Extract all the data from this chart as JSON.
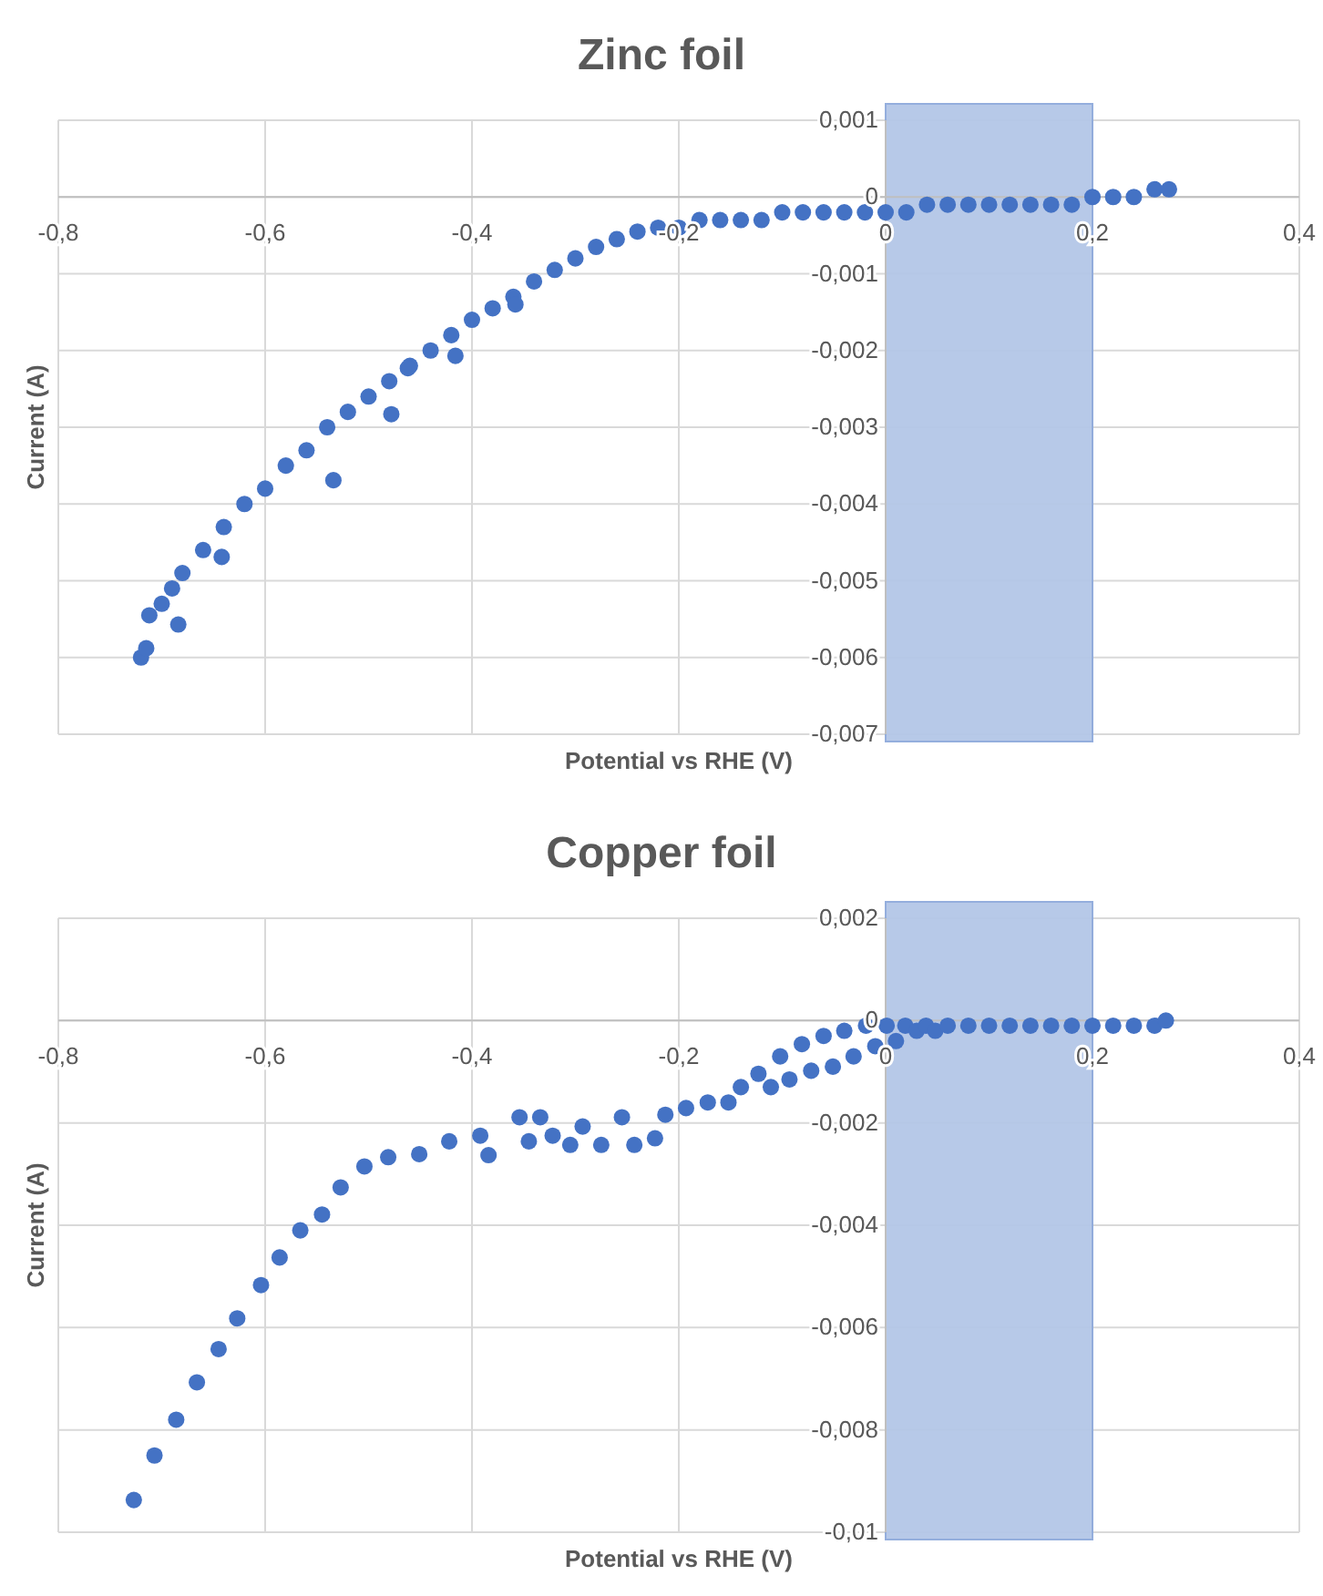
{
  "chart_data": [
    {
      "type": "scatter",
      "title": "Zinc foil",
      "xlabel": "Potential vs RHE (V)",
      "ylabel": "Current (A)",
      "xlim": [
        -0.8,
        0.4
      ],
      "xticks": [
        {
          "value": -0.8,
          "label": "-0,8"
        },
        {
          "value": -0.6,
          "label": "-0,6"
        },
        {
          "value": -0.4,
          "label": "-0,4"
        },
        {
          "value": -0.2,
          "label": "-0,2"
        },
        0,
        {
          "value": 0.2,
          "label": "0,2"
        },
        {
          "value": 0.4,
          "label": "0,4"
        }
      ],
      "ylim": [
        -0.007,
        0.001
      ],
      "yticks": [
        {
          "value": -0.007,
          "label": "-0,007"
        },
        {
          "value": -0.006,
          "label": "-0,006"
        },
        {
          "value": -0.005,
          "label": "-0,005"
        },
        {
          "value": -0.004,
          "label": "-0,004"
        },
        {
          "value": -0.003,
          "label": "-0,003"
        },
        {
          "value": -0.002,
          "label": "-0,002"
        },
        {
          "value": -0.001,
          "label": "-0,001"
        },
        0,
        {
          "value": 0.001,
          "label": "0,001"
        }
      ],
      "grid": true,
      "marker": "circle",
      "bands": [
        {
          "axis": "x",
          "from": 0,
          "to": 0.2,
          "color": "#b4c7e7"
        }
      ],
      "series": [
        {
          "color": "#4472c4",
          "x": [
            -0.72,
            -0.712,
            -0.7,
            -0.69,
            -0.68,
            -0.66,
            -0.64,
            -0.62,
            -0.6,
            -0.58,
            -0.56,
            -0.54,
            -0.52,
            -0.5,
            -0.48,
            -0.46,
            -0.44,
            -0.42,
            -0.4,
            -0.38,
            -0.36,
            -0.34,
            -0.32,
            -0.3,
            -0.28,
            -0.26,
            -0.24,
            -0.22,
            -0.2,
            -0.18,
            -0.16,
            -0.14,
            -0.12,
            -0.1,
            -0.08,
            -0.06,
            -0.04,
            -0.02,
            0,
            0.02,
            0.04,
            0.06,
            0.08,
            0.1,
            0.12,
            0.14,
            0.16,
            0.18,
            0.2,
            0.22,
            0.24,
            0.26,
            0.274,
            -0.715,
            -0.684,
            -0.642,
            -0.534,
            -0.478,
            -0.462,
            -0.416,
            -0.358
          ],
          "values": [
            -0.006,
            -0.00545,
            -0.0053,
            -0.0051,
            -0.0049,
            -0.0046,
            -0.0043,
            -0.004,
            -0.0038,
            -0.0035,
            -0.0033,
            -0.003,
            -0.0028,
            -0.0026,
            -0.0024,
            -0.0022,
            -0.002,
            -0.0018,
            -0.0016,
            -0.00145,
            -0.0013,
            -0.0011,
            -0.00095,
            -0.0008,
            -0.00065,
            -0.00055,
            -0.00045,
            -0.0004,
            -0.0004,
            -0.0003,
            -0.0003,
            -0.0003,
            -0.0003,
            -0.0002,
            -0.0002,
            -0.0002,
            -0.0002,
            -0.0002,
            -0.0002,
            -0.0002,
            -0.0001,
            -0.0001,
            -0.0001,
            -0.0001,
            -0.0001,
            -0.0001,
            -0.0001,
            -0.0001,
            0,
            0,
            0,
            0.0001,
            0.0001,
            -0.00588,
            -0.00557,
            -0.00469,
            -0.00369,
            -0.00283,
            -0.00223,
            -0.00207,
            -0.0014
          ]
        }
      ]
    },
    {
      "type": "scatter",
      "title": "Copper foil",
      "xlabel": "Potential vs RHE (V)",
      "ylabel": "Current (A)",
      "xlim": [
        -0.8,
        0.4
      ],
      "xticks": [
        {
          "value": -0.8,
          "label": "-0,8"
        },
        {
          "value": -0.6,
          "label": "-0,6"
        },
        {
          "value": -0.4,
          "label": "-0,4"
        },
        {
          "value": -0.2,
          "label": "-0,2"
        },
        0,
        {
          "value": 0.2,
          "label": "0,2"
        },
        {
          "value": 0.4,
          "label": "0,4"
        }
      ],
      "ylim": [
        -0.01,
        0.002
      ],
      "yticks": [
        {
          "value": -0.01,
          "label": "-0,01"
        },
        {
          "value": -0.008,
          "label": "-0,008"
        },
        {
          "value": -0.006,
          "label": "-0,006"
        },
        {
          "value": -0.004,
          "label": "-0,004"
        },
        {
          "value": -0.002,
          "label": "-0,002"
        },
        0,
        {
          "value": 0.002,
          "label": "0,002"
        }
      ],
      "grid": true,
      "marker": "circle",
      "bands": [
        {
          "axis": "x",
          "from": 0,
          "to": 0.2,
          "color": "#b4c7e7"
        }
      ],
      "series": [
        {
          "color": "#4472c4",
          "x": [
            -0.727,
            -0.707,
            -0.686,
            -0.666,
            -0.645,
            -0.627,
            -0.604,
            -0.586,
            -0.566,
            -0.545,
            -0.527,
            -0.504,
            -0.481,
            -0.451,
            -0.422,
            -0.392,
            -0.384,
            -0.354,
            -0.345,
            -0.334,
            -0.322,
            -0.305,
            -0.293,
            -0.275,
            -0.255,
            -0.243,
            -0.223,
            -0.213,
            -0.193,
            -0.172,
            -0.152,
            -0.14,
            -0.123,
            -0.111,
            -0.102,
            -0.093,
            -0.081,
            -0.072,
            -0.06,
            -0.051,
            -0.04,
            -0.031,
            -0.019,
            -0.01,
            0.001,
            0.01,
            0.019,
            0.03,
            0.039,
            0.048,
            0.06,
            0.08,
            0.1,
            0.12,
            0.14,
            0.16,
            0.18,
            0.2,
            0.22,
            0.24,
            0.26,
            0.271
          ],
          "values": [
            -0.00937,
            -0.0085,
            -0.0078,
            -0.00707,
            -0.00642,
            -0.00582,
            -0.00517,
            -0.00463,
            -0.0041,
            -0.00379,
            -0.00326,
            -0.00285,
            -0.00267,
            -0.00261,
            -0.00236,
            -0.00225,
            -0.00263,
            -0.00189,
            -0.00236,
            -0.00189,
            -0.00225,
            -0.00243,
            -0.00207,
            -0.00243,
            -0.00189,
            -0.00243,
            -0.0023,
            -0.00184,
            -0.00171,
            -0.0016,
            -0.0016,
            -0.0013,
            -0.00104,
            -0.0013,
            -0.0007,
            -0.00115,
            -0.00046,
            -0.00098,
            -0.0003,
            -0.0009,
            -0.0002,
            -0.0007,
            -0.0001,
            -0.0005,
            -0.0001,
            -0.0004,
            -0.0001,
            -0.0002,
            -0.0001,
            -0.0002,
            -0.0001,
            -0.0001,
            -0.0001,
            -0.0001,
            -0.0001,
            -0.0001,
            -0.0001,
            -0.0001,
            -0.0001,
            -0.0001,
            -0.0001,
            0
          ]
        }
      ]
    }
  ]
}
